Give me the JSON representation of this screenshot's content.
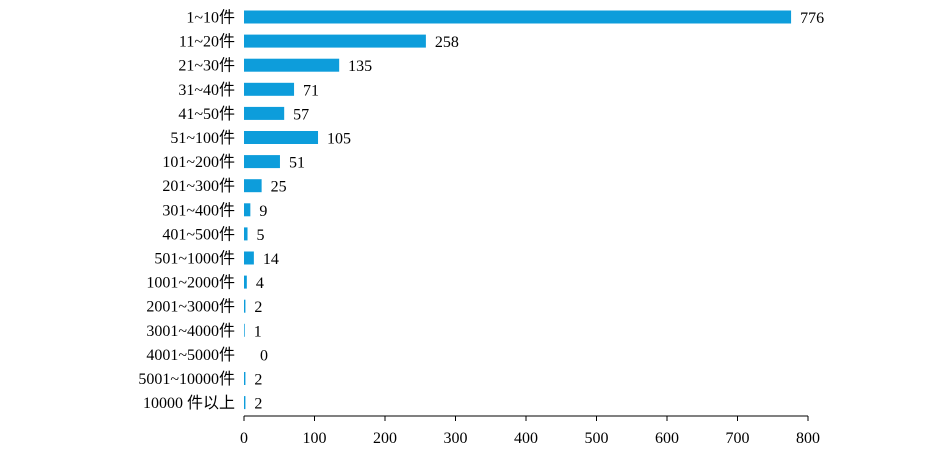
{
  "chart_data": {
    "type": "bar",
    "orientation": "horizontal",
    "categories": [
      "1~10件",
      "11~20件",
      "21~30件",
      "31~40件",
      "41~50件",
      "51~100件",
      "101~200件",
      "201~300件",
      "301~400件",
      "401~500件",
      "501~1000件",
      "1001~2000件",
      "2001~3000件",
      "3001~4000件",
      "4001~5000件",
      "5001~10000件",
      "10000 件以上"
    ],
    "values": [
      776,
      258,
      135,
      71,
      57,
      105,
      51,
      25,
      9,
      5,
      14,
      4,
      2,
      1,
      0,
      2,
      2
    ],
    "value_labels": [
      "776",
      "258",
      "135",
      "71",
      "57",
      "105",
      "51",
      "25",
      "9",
      "5",
      "14",
      "4",
      "2",
      "1",
      "0",
      "2",
      "2"
    ],
    "xlim": [
      0,
      800
    ],
    "xticks": [
      "0",
      "100",
      "200",
      "300",
      "400",
      "500",
      "600",
      "700",
      "800"
    ],
    "title": "",
    "xlabel": "",
    "ylabel": "",
    "grid": false,
    "bar_color": "#0d9ddb"
  }
}
